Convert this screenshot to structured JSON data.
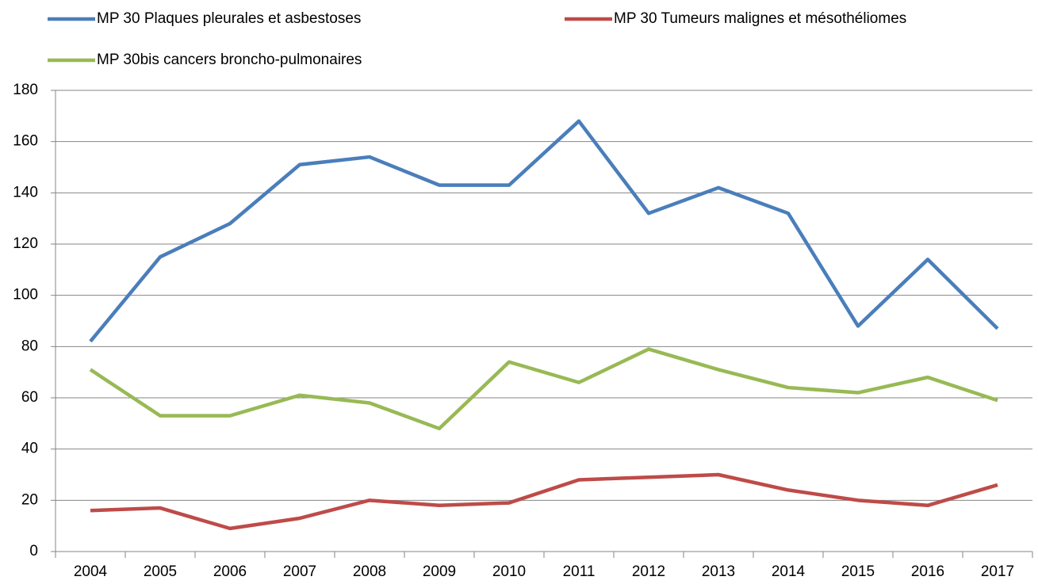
{
  "chart_data": {
    "type": "line",
    "categories": [
      "2004",
      "2005",
      "2006",
      "2007",
      "2008",
      "2009",
      "2010",
      "2011",
      "2012",
      "2013",
      "2014",
      "2015",
      "2016",
      "2017"
    ],
    "series": [
      {
        "name": "MP 30 Plaques pleurales et asbestoses",
        "color": "#4a7ebb",
        "values": [
          82,
          115,
          128,
          151,
          154,
          143,
          143,
          168,
          132,
          142,
          132,
          88,
          114,
          87
        ]
      },
      {
        "name": "MP 30 Tumeurs malignes et mésothéliomes",
        "color": "#be4b48",
        "values": [
          16,
          17,
          9,
          13,
          20,
          18,
          19,
          28,
          29,
          30,
          24,
          20,
          18,
          26
        ]
      },
      {
        "name": "MP 30bis cancers broncho-pulmonaires",
        "color": "#98b954",
        "values": [
          71,
          53,
          53,
          61,
          58,
          48,
          74,
          66,
          79,
          71,
          64,
          62,
          68,
          59
        ]
      }
    ],
    "ylim": [
      0,
      180
    ],
    "yticks": [
      0,
      20,
      40,
      60,
      80,
      100,
      120,
      140,
      160,
      180
    ],
    "grid": true,
    "legend": "top"
  }
}
